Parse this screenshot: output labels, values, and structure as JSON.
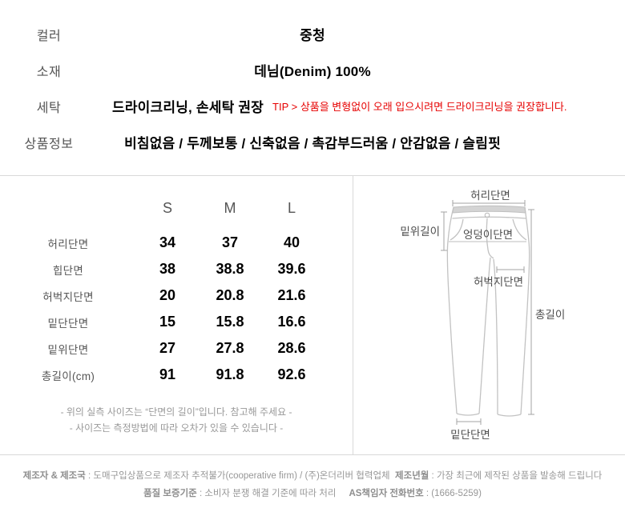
{
  "info": {
    "color": {
      "label": "컬러",
      "value": "중청"
    },
    "material": {
      "label": "소재",
      "value": "데님(Denim) 100%"
    },
    "washing": {
      "label": "세탁",
      "value": "드라이크리닝, 손세탁 권장",
      "tip": "TIP > 상품을 변형없이 오래 입으시려면 드라이크리닝을 권장합니다."
    },
    "product": {
      "label": "상품정보",
      "value": "비침없음 / 두께보통 / 신축없음 / 촉감부드러움 / 안감없음 / 슬림핏"
    }
  },
  "size_table": {
    "columns": [
      "S",
      "M",
      "L"
    ],
    "rows": [
      {
        "label": "허리단면",
        "values": [
          "34",
          "37",
          "40"
        ]
      },
      {
        "label": "힙단면",
        "values": [
          "38",
          "38.8",
          "39.6"
        ]
      },
      {
        "label": "허벅지단면",
        "values": [
          "20",
          "20.8",
          "21.6"
        ]
      },
      {
        "label": "밑단단면",
        "values": [
          "15",
          "15.8",
          "16.6"
        ]
      },
      {
        "label": "밑위단면",
        "values": [
          "27",
          "27.8",
          "28.6"
        ]
      },
      {
        "label": "총길이(cm)",
        "values": [
          "91",
          "91.8",
          "92.6"
        ]
      }
    ],
    "notes": [
      "- 위의 실측 사이즈는 “단면의 길이”입니다. 참고해 주세요 -",
      "- 사이즈는 측정방법에 따라 오차가 있을 수 있습니다 -"
    ]
  },
  "diagram": {
    "labels": {
      "waist": "허리단면",
      "rise": "밑위길이",
      "hip": "엉덩이단면",
      "thigh": "허벅지단면",
      "total": "총길이",
      "hem": "밑단단면"
    }
  },
  "footer": {
    "line1": [
      {
        "text": "제조자 & 제조국",
        "bold": true
      },
      {
        "text": " : 도매구입상품으로 제조자 추적불가(cooperative firm) / (주)온더리버 협력업체",
        "bold": false
      },
      {
        "text": "  ",
        "bold": false
      },
      {
        "text": "제조년월",
        "bold": true
      },
      {
        "text": " : 가장 최근에 제작된 상품을 발송해 드립니다",
        "bold": false
      }
    ],
    "line2": [
      {
        "text": "품질 보증기준",
        "bold": true
      },
      {
        "text": " : 소비자 분쟁 해결 기준에 따라 처리",
        "bold": false
      },
      {
        "text": "     ",
        "bold": false
      },
      {
        "text": "AS책임자 전화번호",
        "bold": true
      },
      {
        "text": " : (1666-5259)",
        "bold": false
      }
    ]
  },
  "colors": {
    "tip_red": "#e60000",
    "divider": "#d9d9d9"
  }
}
